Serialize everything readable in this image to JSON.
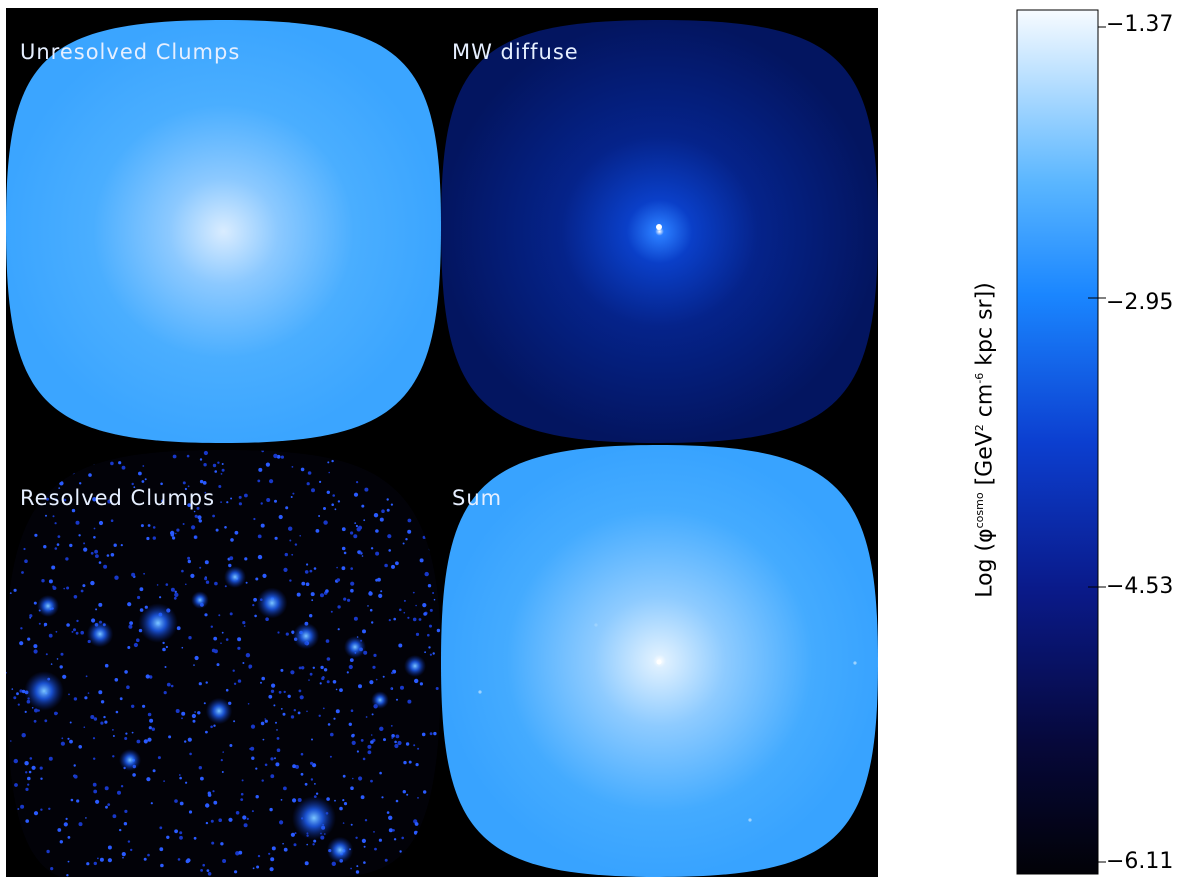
{
  "panels": {
    "top_left": {
      "label": "Unresolved Clumps"
    },
    "top_right": {
      "label": "MW diffuse"
    },
    "bottom_left": {
      "label": "Resolved Clumps"
    },
    "bottom_right": {
      "label": "Sum"
    }
  },
  "colorbar": {
    "title_prefix": "Log (",
    "phi": "φ",
    "phi_sup": "cosmo",
    "title_mid1": " [GeV",
    "sup2": "2",
    "title_mid2": " cm",
    "sup3": "-6",
    "title_end": " kpc sr])",
    "ticks": [
      "−1.37",
      "−2.95",
      "−4.53",
      "−6.11"
    ]
  },
  "chart_data": {
    "type": "heatmap",
    "panels": [
      "Unresolved Clumps",
      "MW diffuse",
      "Resolved Clumps",
      "Sum"
    ],
    "colorbar_range": [
      -6.11,
      -1.37
    ],
    "colorbar_ticks": [
      -1.37,
      -2.95,
      -4.53,
      -6.11
    ],
    "colors": {
      "background": "#000000",
      "low": "#05051a",
      "mid": "#0a3ad0",
      "high_mid": "#2b9cff",
      "top": "#f2f8ff"
    }
  }
}
